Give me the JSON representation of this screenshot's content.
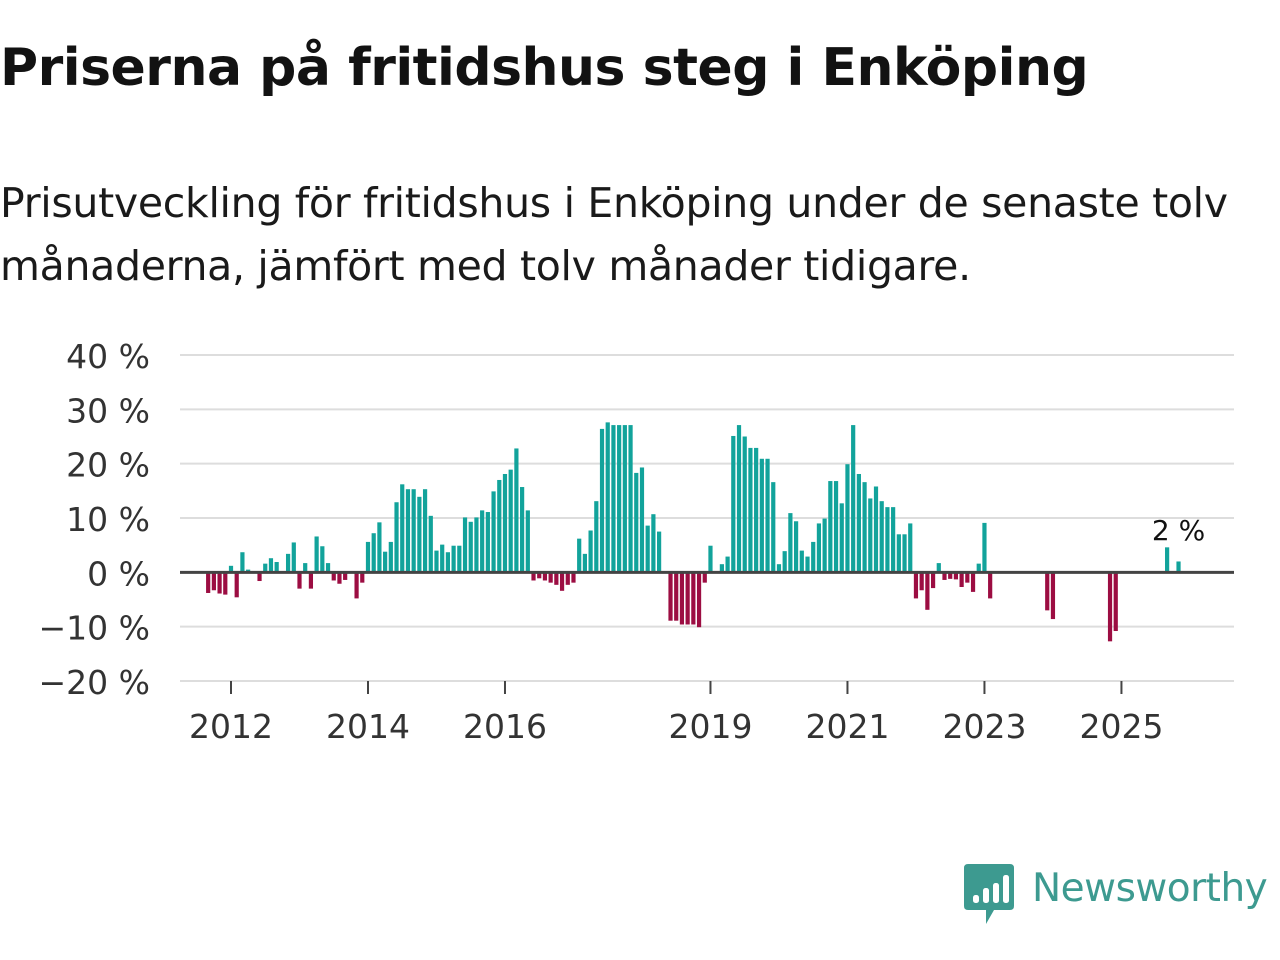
{
  "header": {
    "title": "Priserna på fritidshus steg i Enköping",
    "subtitle": "Prisutveckling för fritidshus i Enköping under de senaste tolv månaderna, jämfört med tolv månader tidigare."
  },
  "logo": {
    "text": "Newsworthy"
  },
  "colors": {
    "positive": "#12a39b",
    "negative": "#9c0d42",
    "grid": "#dddddd",
    "zero_line": "#444444",
    "axis_text": "#333333",
    "logo": "#3d9a90"
  },
  "chart_data": {
    "type": "bar",
    "title": "Priserna på fritidshus steg i Enköping",
    "xlabel": "",
    "ylabel": "",
    "ylim": [
      -20,
      40
    ],
    "yticks": [
      40,
      30,
      20,
      10,
      0,
      -10,
      -20
    ],
    "ytick_labels": [
      "40 %",
      "30 %",
      "20 %",
      "10 %",
      "0 %",
      "−10 %",
      "−20 %"
    ],
    "xticks": [
      "2012",
      "2014",
      "2016",
      "2019",
      "2021",
      "2023",
      "2025"
    ],
    "grid": true,
    "legend": "none",
    "annotation": {
      "text": "2 %",
      "target": "last"
    },
    "series": [
      {
        "name": "Prisutveckling",
        "segments": [
          {
            "start": "2011-09",
            "values": [
              -3.8,
              -3.3,
              -3.9,
              -4.1,
              1.2,
              -4.6,
              3.7,
              0.5,
              null,
              -1.6,
              1.6,
              2.6,
              1.9,
              null,
              3.4,
              5.5,
              -3.0,
              1.7,
              -3.0,
              6.6,
              4.8,
              1.7,
              -1.5,
              -2.1,
              -1.4,
              null,
              -4.8,
              -1.9,
              5.6,
              7.2,
              9.2,
              3.8,
              5.6,
              12.9,
              16.2,
              15.3,
              15.3,
              13.9,
              15.3,
              10.4,
              4.0,
              5.1,
              3.7,
              4.9,
              4.9,
              10.1,
              9.3,
              10.1,
              11.4,
              11.1,
              14.9,
              17.0,
              18.1,
              18.9,
              22.8,
              15.7,
              11.4,
              -1.5,
              -1.1,
              -1.5,
              -1.9,
              -2.3,
              -3.4,
              -2.3,
              -1.9,
              6.2,
              3.4,
              7.7,
              13.1,
              26.4,
              27.6,
              27.1,
              27.1,
              27.1,
              27.1,
              18.3,
              19.3,
              8.6,
              10.7,
              7.5,
              null,
              -8.9,
              -8.9,
              -9.6,
              -9.6,
              -9.6,
              -10.1,
              -1.9,
              4.9,
              null,
              1.5,
              2.9,
              25.1,
              27.1,
              25.0,
              22.9,
              22.9,
              20.9,
              20.9,
              16.6,
              1.5,
              3.9,
              10.9,
              9.4,
              4.0,
              2.9,
              5.6,
              9.0,
              9.9,
              16.8,
              16.8,
              12.7,
              19.9,
              27.1,
              18.1,
              16.6,
              13.6,
              15.8,
              13.1,
              12.0,
              12.0,
              7.0,
              7.0,
              9.0,
              -4.8,
              -3.3,
              -6.9,
              -2.9,
              1.7,
              -1.4,
              -1.2,
              -1.3,
              -2.7,
              -1.9,
              -3.6,
              1.6,
              9.1,
              -4.8
            ]
          },
          {
            "start": "2023-12",
            "values": [
              -7.0,
              -8.6
            ]
          },
          {
            "start": "2024-11",
            "values": [
              -12.7,
              -10.8
            ]
          },
          {
            "start": "2025-09",
            "values": [
              4.6,
              null,
              2.0
            ]
          }
        ]
      }
    ]
  }
}
